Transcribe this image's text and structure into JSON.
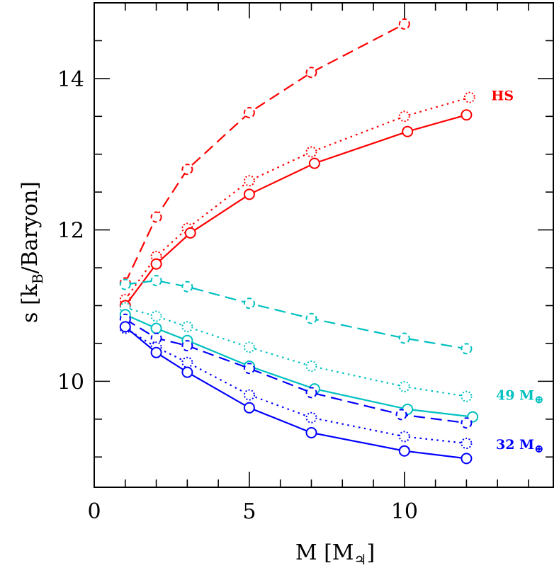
{
  "chart_data": {
    "type": "line",
    "xlabel": "M [M",
    "xlabel_sub": "♃",
    "xlabel_tail": "]",
    "ylabel": "s [k",
    "ylabel_sub": "B",
    "ylabel_tail": "/Baryon]",
    "xlim": [
      0,
      14.8
    ],
    "ylim": [
      8.6,
      15.0
    ],
    "x_major_ticks": [
      0,
      5,
      10
    ],
    "x_minor_step": 1,
    "y_major_ticks": [
      10,
      12,
      14
    ],
    "y_minor_step": 0.5,
    "grid": false,
    "legend": "none",
    "annotations": [
      {
        "id": "hs",
        "text": "HS",
        "sub": "",
        "x": 12.8,
        "y": 13.78,
        "color": "#ff0000"
      },
      {
        "id": "m49",
        "text": "49 M",
        "sub": "⊕",
        "x": 12.95,
        "y": 9.82,
        "color": "#00c0c0"
      },
      {
        "id": "m32",
        "text": "32 M",
        "sub": "⊕",
        "x": 12.95,
        "y": 9.17,
        "color": "#0000ff"
      }
    ],
    "series": [
      {
        "id": "red-dashed",
        "color": "#ff0000",
        "style": "dashed",
        "x": [
          1,
          2,
          3,
          5,
          7,
          10
        ],
        "y": [
          11.3,
          12.17,
          12.8,
          13.55,
          14.08,
          14.72
        ]
      },
      {
        "id": "red-dotted",
        "color": "#ff0000",
        "style": "dotted",
        "x": [
          1,
          2,
          3,
          5,
          7,
          10,
          12.1
        ],
        "y": [
          11.08,
          11.65,
          12.02,
          12.65,
          13.03,
          13.5,
          13.75
        ]
      },
      {
        "id": "red-solid",
        "color": "#ff0000",
        "style": "solid",
        "x": [
          1,
          2,
          3.1,
          5,
          7.1,
          10.1,
          12
        ],
        "y": [
          11.0,
          11.55,
          11.96,
          12.47,
          12.88,
          13.3,
          13.52
        ]
      },
      {
        "id": "cyan-dashed",
        "color": "#00c0c0",
        "style": "dashed",
        "x": [
          1,
          2,
          3,
          5,
          7,
          10,
          12
        ],
        "y": [
          11.28,
          11.33,
          11.25,
          11.03,
          10.83,
          10.57,
          10.43
        ]
      },
      {
        "id": "cyan-dotted",
        "color": "#00c0c0",
        "style": "dotted",
        "x": [
          1,
          2,
          3,
          5,
          7,
          10,
          12
        ],
        "y": [
          10.97,
          10.86,
          10.72,
          10.45,
          10.2,
          9.93,
          9.8
        ]
      },
      {
        "id": "cyan-solid",
        "color": "#00c0c0",
        "style": "solid",
        "x": [
          1,
          2,
          3,
          5,
          7.1,
          10.1,
          12.2
        ],
        "y": [
          10.88,
          10.7,
          10.54,
          10.2,
          9.9,
          9.63,
          9.53
        ]
      },
      {
        "id": "blue-dashed",
        "color": "#0000ff",
        "style": "dashed",
        "x": [
          1,
          2,
          3,
          5,
          7,
          9.9,
          12
        ],
        "y": [
          10.82,
          10.57,
          10.47,
          10.17,
          9.85,
          9.56,
          9.45
        ]
      },
      {
        "id": "blue-dotted",
        "color": "#0000ff",
        "style": "dotted",
        "x": [
          1,
          2,
          3,
          5,
          7,
          10,
          12
        ],
        "y": [
          10.7,
          10.45,
          10.25,
          9.82,
          9.52,
          9.27,
          9.18
        ]
      },
      {
        "id": "blue-solid",
        "color": "#0000ff",
        "style": "solid",
        "x": [
          1,
          2,
          3,
          5,
          7,
          10,
          12
        ],
        "y": [
          10.72,
          10.38,
          10.12,
          9.65,
          9.32,
          9.08,
          8.98
        ]
      }
    ]
  }
}
